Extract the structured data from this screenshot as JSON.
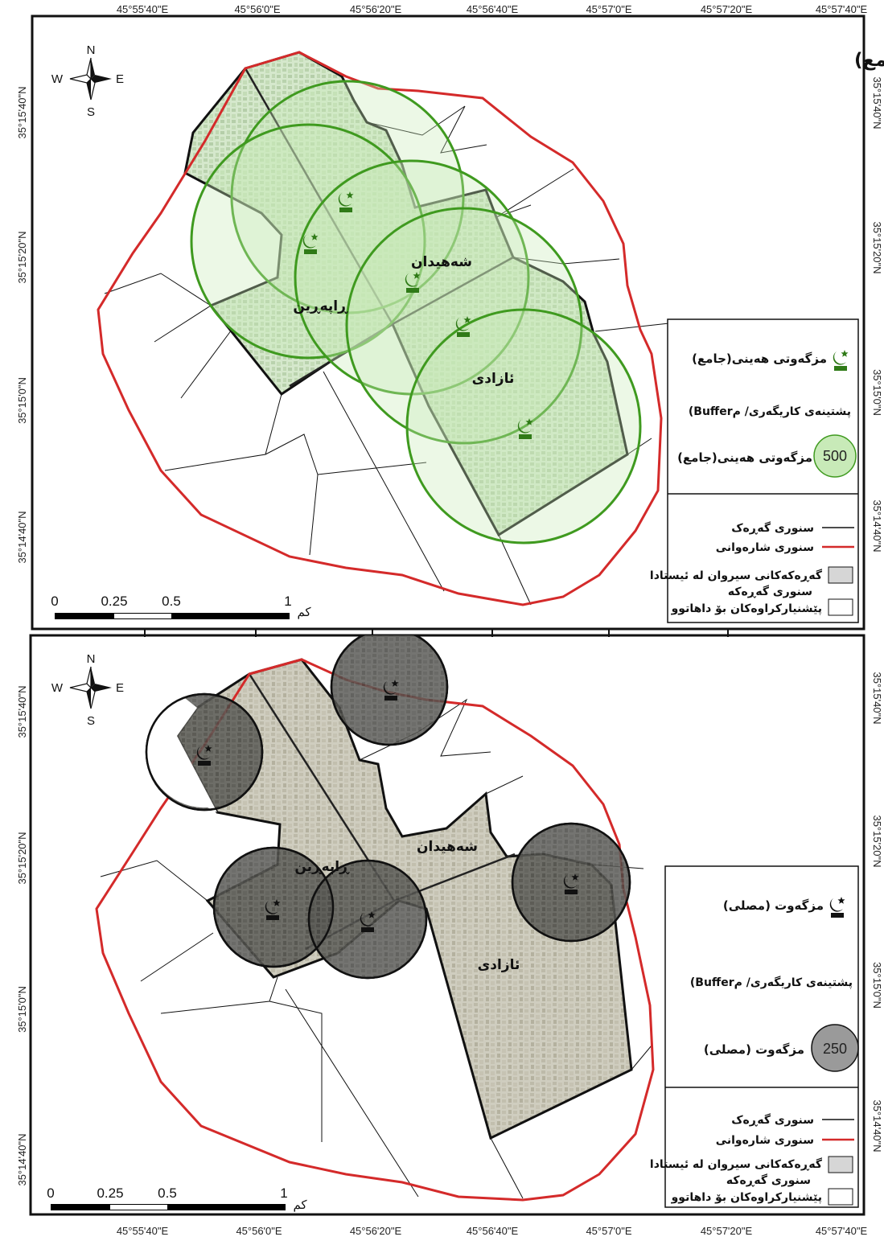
{
  "top_coords": [
    "45°55'40\"E",
    "45°56'0\"E",
    "45°56'20\"E",
    "45°56'40\"E",
    "45°57'0\"E",
    "45°57'20\"E",
    "45°57'40\"E"
  ],
  "bottom_coords": [
    "45°55'40\"E",
    "45°56'0\"E",
    "45°56'20\"E",
    "45°56'40\"E",
    "45°57'0\"E",
    "45°57'20\"E",
    "45°57'40\"E"
  ],
  "map1": {
    "title": "مزگەتی هەینی(جامع)",
    "left_coords": [
      "35°15'40\"N",
      "35°15'20\"N",
      "35°15'0\"N",
      "35°14'40\"N"
    ],
    "right_coords": [
      "35°15'40\"N",
      "35°15'20\"N",
      "35°15'0\"N",
      "35°14'40\"N"
    ],
    "neighborhoods": [
      "ڕاپەڕین",
      "شەهیدان",
      "ئازادی"
    ],
    "legend": {
      "mosque": "مزگەوتی هەینی(جامع)",
      "buffer_heading": "(Bufferپشتینەی کاریگەری/ م",
      "buffer_value": "500",
      "buffer_label": "مزگەوتی هەینی(جامع)",
      "line_neighborhood": "سنوری گەڕەک",
      "line_municipal": "سنوری شارەوانی",
      "existing": "گەڕەکەکانی سیروان لە ئیستادا",
      "boundary": "سنوری گەڕەکە",
      "proposed": "پێشنیارکراوەکان بۆ داهاتوو"
    },
    "scale": [
      "0",
      "0.25",
      "0.5",
      "1",
      "کم"
    ]
  },
  "map2": {
    "left_coords": [
      "35°15'40\"N",
      "35°15'20\"N",
      "35°15'0\"N",
      "35°14'40\"N"
    ],
    "right_coords": [
      "35°15'40\"N",
      "35°15'20\"N",
      "35°15'0\"N",
      "35°14'40\"N"
    ],
    "neighborhoods": [
      "ڕاپەڕین",
      "شەهیدان",
      "ئازادی"
    ],
    "legend": {
      "mosque": "مزگەوت (مصلی)",
      "buffer_heading": "(Bufferپشتینەی کاریگەری/ م",
      "buffer_value": "250",
      "buffer_label": "مزگەوت (مصلی)",
      "line_neighborhood": "سنوری گەڕەک",
      "line_municipal": "سنوری شارەوانی",
      "existing": "گەڕەکەکانی سیروان لە ئیستادا",
      "boundary": "سنوری گەڕەکە",
      "proposed": "پێشنیارکراوەکان بۆ داهاتوو"
    },
    "scale": [
      "0",
      "0.25",
      "0.5",
      "1",
      "کم"
    ]
  },
  "compass": {
    "n": "N",
    "s": "S",
    "e": "E",
    "w": "W"
  },
  "colors": {
    "municipal_boundary": "#d42a2a",
    "buffer_green": "#3f9a1f",
    "buffer_fill": "#c8eab8",
    "mosque_green": "#2f7a17",
    "dark_buffer": "#4a4a4a"
  }
}
